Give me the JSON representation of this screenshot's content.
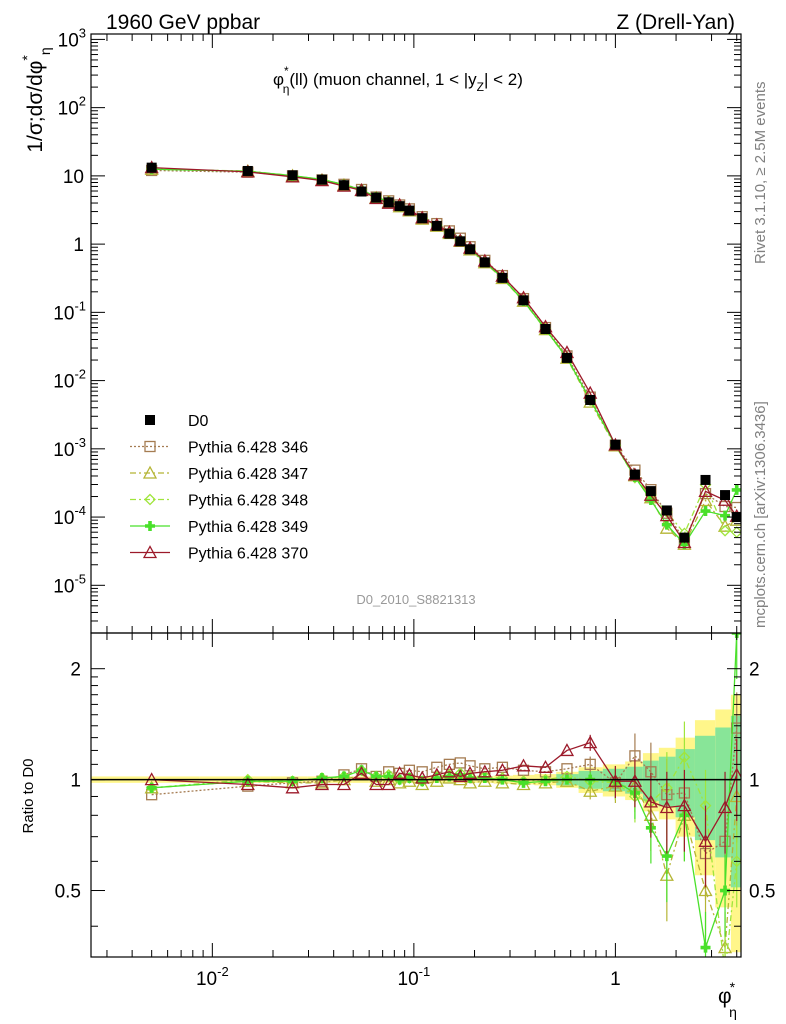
{
  "header": {
    "left": "1960 GeV ppbar",
    "right": "Z (Drell-Yan)"
  },
  "main_plot": {
    "ylabel": "1/σ;dσ/dφ*η",
    "ylabel_parts": {
      "a": "1/σ;dσ/dφ",
      "sup": "*",
      "sub": "η"
    },
    "annotation": "φ*η(ll) (muon channel, 1 < |yZ| < 2)",
    "annotation_parts": {
      "phi": "φ",
      "sup": "*",
      "sub": "η",
      "mid": "(ll) (muon channel, 1 < |y",
      "ysub": "Z",
      "end": "| < 2)"
    },
    "watermark": "D0_2010_S8821313",
    "y_ticks": [
      "10^-5",
      "10^-4",
      "10^-3",
      "10^-2",
      "10^-1",
      "1",
      "10",
      "10^2",
      "10^3"
    ]
  },
  "ratio_plot": {
    "ylabel": "Ratio to D0",
    "y_ticks": [
      "0.5",
      "1",
      "2"
    ]
  },
  "x_axis": {
    "label": "φ*η",
    "label_parts": {
      "phi": "φ",
      "sup": "*",
      "sub": "η"
    },
    "ticks": [
      "10^-2",
      "10^-1",
      "1"
    ]
  },
  "side_text": {
    "rivet": "Rivet 3.1.10, ≥ 2.5M events",
    "mcplots": "mcplots.cern.ch [arXiv:1306.3436]"
  },
  "chart_data": {
    "type": "scatter",
    "title": "",
    "x_scale": "log",
    "y_scale": "log",
    "xlim": [
      0.0025,
      4.2
    ],
    "ylim": [
      2e-06,
      1200
    ],
    "ratio_ylim": [
      0.33,
      2.5
    ],
    "legend_position": "left, lower half",
    "x": [
      0.005,
      0.015,
      0.025,
      0.035,
      0.045,
      0.055,
      0.065,
      0.075,
      0.085,
      0.095,
      0.11,
      0.13,
      0.15,
      0.17,
      0.19,
      0.225,
      0.275,
      0.35,
      0.45,
      0.575,
      0.75,
      1.0,
      1.25,
      1.5,
      1.8,
      2.2,
      2.8,
      3.5,
      4.0
    ],
    "series": [
      {
        "name": "D0",
        "color": "#000000",
        "marker": "square-filled",
        "values": [
          13.2,
          11.8,
          10.2,
          8.8,
          7.3,
          5.9,
          4.8,
          4.1,
          3.6,
          3.1,
          2.4,
          1.85,
          1.42,
          1.1,
          0.84,
          0.54,
          0.32,
          0.15,
          0.057,
          0.0215,
          0.0052,
          0.00115,
          0.00042,
          0.00024,
          0.000125,
          5e-05,
          0.00035,
          0.00021,
          0.0001
        ]
      },
      {
        "name": "Pythia 6.428 346",
        "color": "#a57c52",
        "marker": "square-open",
        "line": "dotted",
        "ratio": [
          0.91,
          0.96,
          0.98,
          0.99,
          1.03,
          1.07,
          1.02,
          1.05,
          1.04,
          1.06,
          1.05,
          1.08,
          1.1,
          1.11,
          1.09,
          1.07,
          1.08,
          1.06,
          1.05,
          1.07,
          1.1,
          0.98,
          1.16,
          1.05,
          0.91,
          0.92,
          0.63,
          0.68,
          1.38
        ]
      },
      {
        "name": "Pythia 6.428 347",
        "color": "#b5b535",
        "marker": "triangle-open",
        "line": "dash-dot",
        "ratio": [
          0.95,
          0.99,
          0.98,
          0.98,
          1.0,
          1.03,
          0.99,
          1.0,
          0.98,
          0.99,
          0.97,
          0.99,
          1.01,
          1.0,
          0.98,
          0.99,
          0.98,
          0.97,
          0.98,
          0.99,
          0.93,
          0.96,
          0.96,
          0.8,
          0.55,
          0.8,
          0.5,
          0.35,
          0.9
        ]
      },
      {
        "name": "Pythia 6.428 348",
        "color": "#a0e53c",
        "marker": "diamond-open",
        "line": "dash-dot",
        "ratio": [
          0.95,
          1.0,
          0.99,
          1.01,
          1.02,
          1.06,
          1.02,
          1.03,
          1.0,
          1.01,
          0.99,
          1.02,
          1.03,
          1.04,
          1.02,
          1.02,
          1.01,
          0.99,
          1.0,
          1.02,
          0.99,
          0.98,
          0.9,
          0.87,
          0.95,
          1.15,
          0.85,
          0.3,
          0.6
        ]
      },
      {
        "name": "Pythia 6.428 349",
        "color": "#49e02a",
        "marker": "cross-filled",
        "line": "solid",
        "ratio": [
          0.95,
          0.99,
          0.99,
          1.01,
          1.02,
          1.06,
          1.02,
          1.02,
          1.0,
          1.01,
          0.99,
          1.01,
          1.02,
          1.03,
          1.01,
          1.01,
          1.0,
          0.98,
          0.99,
          1.0,
          1.0,
          0.99,
          0.92,
          0.74,
          0.62,
          0.8,
          0.35,
          0.5,
          2.5
        ]
      },
      {
        "name": "Pythia 6.428 370",
        "color": "#9c1a2a",
        "marker": "triangle-open",
        "line": "solid",
        "ratio": [
          1.0,
          0.97,
          0.95,
          0.97,
          0.97,
          1.04,
          0.97,
          0.97,
          1.04,
          1.03,
          1.01,
          1.03,
          1.05,
          1.02,
          1.04,
          1.05,
          1.06,
          1.09,
          1.08,
          1.2,
          1.26,
          0.99,
          0.99,
          0.87,
          0.84,
          0.85,
          0.68,
          0.84,
          1.03
        ]
      }
    ],
    "data_uncertainty_band": {
      "color": "#fff68a",
      "inner_color": "#73e29a",
      "half_width": [
        0.02,
        0.02,
        0.02,
        0.02,
        0.02,
        0.02,
        0.02,
        0.02,
        0.02,
        0.02,
        0.02,
        0.02,
        0.02,
        0.02,
        0.02,
        0.02,
        0.025,
        0.03,
        0.035,
        0.05,
        0.08,
        0.1,
        0.12,
        0.18,
        0.22,
        0.3,
        0.45,
        0.55,
        0.7
      ]
    }
  }
}
